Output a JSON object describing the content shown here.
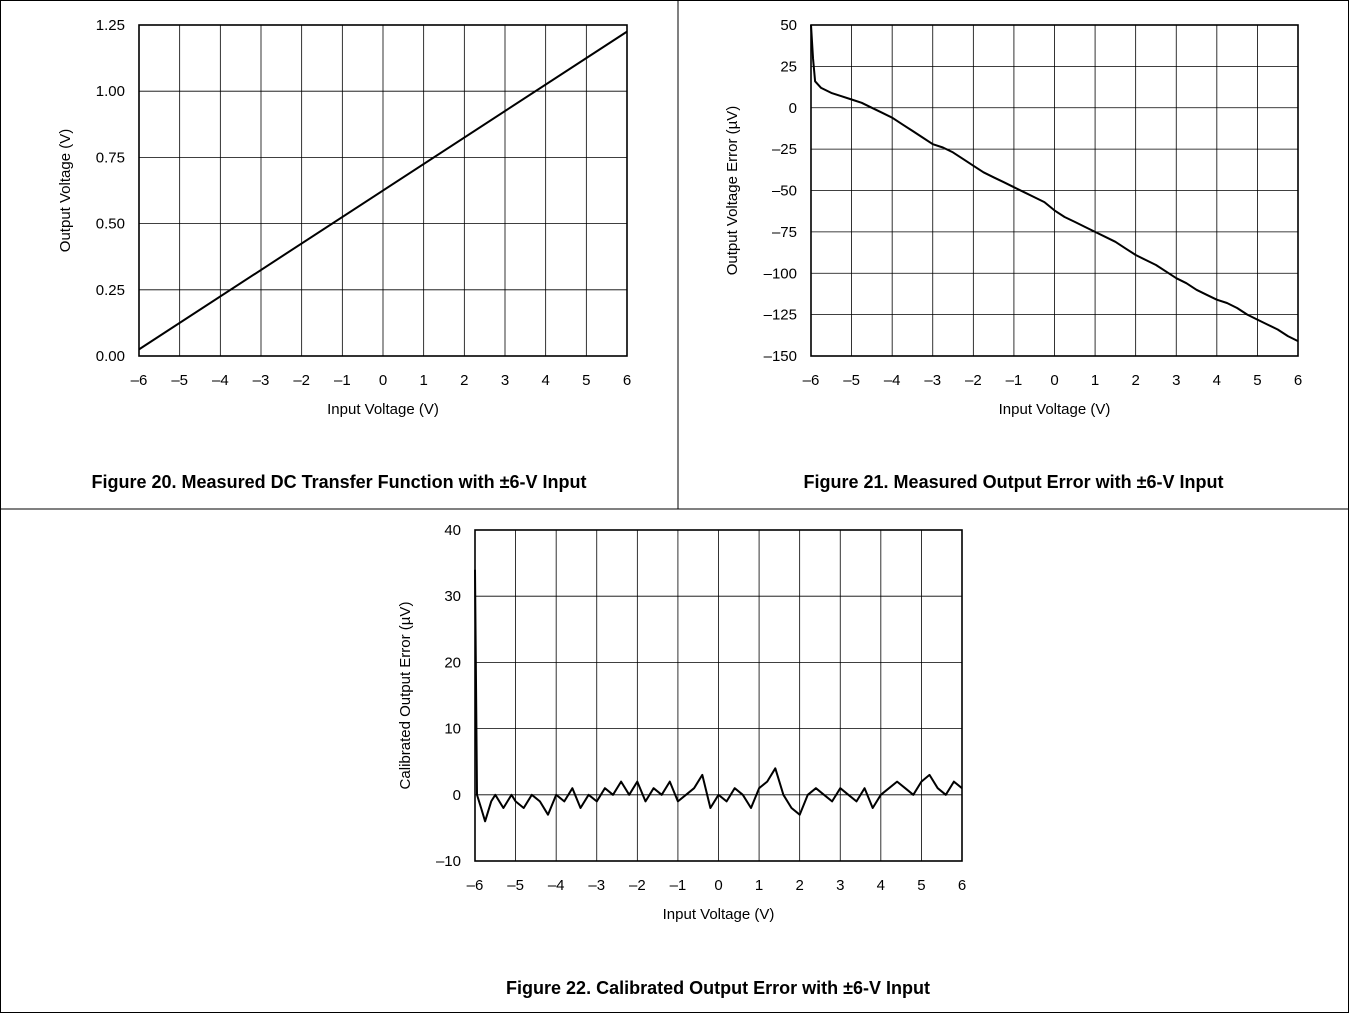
{
  "captions": {
    "fig20": "Figure 20. Measured DC Transfer Function with ±6-V Input",
    "fig21": "Figure 21. Measured Output Error with ±6-V Input",
    "fig22": "Figure 22. Calibrated Output Error with ±6-V Input"
  },
  "chart_data": [
    {
      "type": "line",
      "xlabel": "Input Voltage (V)",
      "ylabel": "Output Voltage (V)",
      "xlim": [
        -6,
        6
      ],
      "ylim": [
        0,
        1.25
      ],
      "xticks": [
        "–6",
        "–5",
        "–4",
        "–3",
        "–2",
        "–1",
        "0",
        "1",
        "2",
        "3",
        "4",
        "5",
        "6"
      ],
      "yticks": [
        "0.00",
        "0.25",
        "0.50",
        "0.75",
        "1.00",
        "1.25"
      ],
      "grid": true,
      "series": [
        {
          "x": [
            -6,
            6
          ],
          "y": [
            0.025,
            1.225
          ]
        }
      ]
    },
    {
      "type": "line",
      "xlabel": "Input Voltage (V)",
      "ylabel": "Output Voltage Error (µV)",
      "xlim": [
        -6,
        6
      ],
      "ylim": [
        -150,
        50
      ],
      "xticks": [
        "–6",
        "–5",
        "–4",
        "–3",
        "–2",
        "–1",
        "0",
        "1",
        "2",
        "3",
        "4",
        "5",
        "6"
      ],
      "yticks": [
        "–150",
        "–125",
        "–100",
        "–75",
        "–50",
        "–25",
        "0",
        "25",
        "50"
      ],
      "grid": true,
      "series": [
        {
          "x": [
            -6,
            -5.95,
            -5.9,
            -5.75,
            -5.5,
            -5.25,
            -5,
            -4.75,
            -4.5,
            -4.25,
            -4,
            -3.75,
            -3.5,
            -3.25,
            -3,
            -2.75,
            -2.5,
            -2.25,
            -2,
            -1.75,
            -1.5,
            -1.25,
            -1,
            -0.75,
            -0.5,
            -0.25,
            0,
            0.25,
            0.5,
            0.75,
            1,
            1.25,
            1.5,
            1.75,
            2,
            2.25,
            2.5,
            2.75,
            3,
            3.25,
            3.5,
            3.75,
            4,
            4.25,
            4.5,
            4.75,
            5,
            5.25,
            5.5,
            5.75,
            6
          ],
          "y": [
            50,
            30,
            16,
            12,
            9,
            7,
            5,
            3,
            0,
            -3,
            -6,
            -10,
            -14,
            -18,
            -22,
            -24,
            -27,
            -31,
            -35,
            -39,
            -42,
            -45,
            -48,
            -51,
            -54,
            -57,
            -62,
            -66,
            -69,
            -72,
            -75,
            -78,
            -81,
            -85,
            -89,
            -92,
            -95,
            -99,
            -103,
            -106,
            -110,
            -113,
            -116,
            -118,
            -121,
            -125,
            -128,
            -131,
            -134,
            -138,
            -141
          ]
        }
      ]
    },
    {
      "type": "line",
      "xlabel": "Input Voltage (V)",
      "ylabel": "Calibrated Output Error (µV)",
      "xlim": [
        -6,
        6
      ],
      "ylim": [
        -10,
        40
      ],
      "xticks": [
        "–6",
        "–5",
        "–4",
        "–3",
        "–2",
        "–1",
        "0",
        "1",
        "2",
        "3",
        "4",
        "5",
        "6"
      ],
      "yticks": [
        "–10",
        "0",
        "10",
        "20",
        "30",
        "40"
      ],
      "grid": true,
      "series": [
        {
          "x": [
            -6,
            -5.95,
            -5.85,
            -5.75,
            -5.6,
            -5.5,
            -5.3,
            -5.1,
            -5,
            -4.8,
            -4.6,
            -4.4,
            -4.2,
            -4,
            -3.8,
            -3.6,
            -3.4,
            -3.2,
            -3,
            -2.8,
            -2.6,
            -2.4,
            -2.2,
            -2,
            -1.8,
            -1.6,
            -1.4,
            -1.2,
            -1,
            -0.8,
            -0.6,
            -0.4,
            -0.2,
            0,
            0.2,
            0.4,
            0.6,
            0.8,
            1,
            1.2,
            1.4,
            1.6,
            1.8,
            2,
            2.2,
            2.4,
            2.6,
            2.8,
            3,
            3.2,
            3.4,
            3.6,
            3.8,
            4,
            4.2,
            4.4,
            4.6,
            4.8,
            5,
            5.2,
            5.4,
            5.6,
            5.8,
            6
          ],
          "y": [
            34,
            0,
            -2,
            -4,
            -1,
            0,
            -2,
            0,
            -1,
            -2,
            0,
            -1,
            -3,
            0,
            -1,
            1,
            -2,
            0,
            -1,
            1,
            0,
            2,
            0,
            2,
            -1,
            1,
            0,
            2,
            -1,
            0,
            1,
            3,
            -2,
            0,
            -1,
            1,
            0,
            -2,
            1,
            2,
            4,
            0,
            -2,
            -3,
            0,
            1,
            0,
            -1,
            1,
            0,
            -1,
            1,
            -2,
            0,
            1,
            2,
            1,
            0,
            2,
            3,
            1,
            0,
            2,
            1
          ]
        }
      ]
    }
  ]
}
